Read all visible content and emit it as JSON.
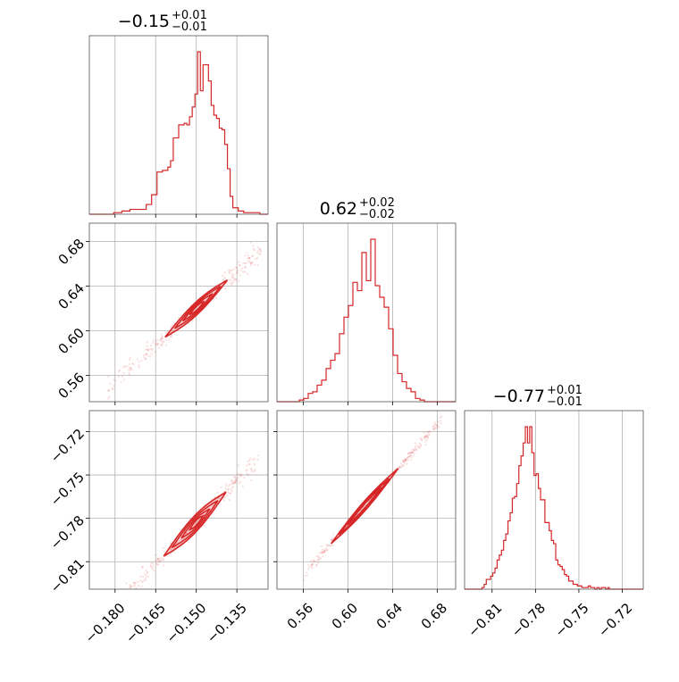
{
  "chart_data": {
    "type": "corner",
    "color": "#d62728",
    "grid": true,
    "parameters": [
      {
        "title": "−0.15",
        "title_plus": "+0.01",
        "title_minus": "−0.01",
        "range": [
          -0.1895,
          -0.1235
        ],
        "ticks": [
          {
            "v": -0.18,
            "label": "−0.180"
          },
          {
            "v": -0.165,
            "label": "−0.165"
          },
          {
            "v": -0.15,
            "label": "−0.150"
          },
          {
            "v": -0.135,
            "label": "−0.135"
          }
        ],
        "hist": {
          "edges": [
            -0.1895,
            -0.1865,
            -0.1835,
            -0.1805,
            -0.1775,
            -0.1745,
            -0.1715,
            -0.1685,
            -0.1665,
            -0.1645,
            -0.1625,
            -0.1605,
            -0.1595,
            -0.1585,
            -0.1575,
            -0.1565,
            -0.1555,
            -0.1545,
            -0.1535,
            -0.1525,
            -0.1515,
            -0.1505,
            -0.1495,
            -0.1485,
            -0.1475,
            -0.1465,
            -0.1455,
            -0.1445,
            -0.1435,
            -0.1425,
            -0.1415,
            -0.1405,
            -0.1395,
            -0.1385,
            -0.1375,
            -0.1365,
            -0.1345,
            -0.1325,
            -0.1295,
            -0.1265,
            -0.1235
          ],
          "counts": [
            0,
            0,
            0,
            1,
            2,
            3,
            3,
            6,
            12,
            26,
            27,
            29,
            33,
            47,
            47,
            55,
            55,
            56,
            55,
            60,
            66,
            74,
            100,
            76,
            92,
            92,
            82,
            67,
            61,
            59,
            53,
            52,
            43,
            28,
            11,
            4,
            2,
            1,
            1,
            0
          ]
        }
      },
      {
        "title": "0.62",
        "title_plus": "+0.02",
        "title_minus": "−0.02",
        "range": [
          0.5365,
          0.6965
        ],
        "ticks": [
          {
            "v": 0.56,
            "label": "0.56"
          },
          {
            "v": 0.6,
            "label": "0.60"
          },
          {
            "v": 0.64,
            "label": "0.64"
          },
          {
            "v": 0.68,
            "label": "0.68"
          }
        ],
        "hist": {
          "edges": [
            0.5365,
            0.5565,
            0.5605,
            0.5645,
            0.5685,
            0.5725,
            0.5765,
            0.5805,
            0.5845,
            0.5885,
            0.5925,
            0.5965,
            0.6005,
            0.6045,
            0.6085,
            0.6125,
            0.6165,
            0.6205,
            0.6245,
            0.6285,
            0.6325,
            0.6365,
            0.6405,
            0.6445,
            0.6485,
            0.6525,
            0.6565,
            0.6605,
            0.6645,
            0.6685,
            0.6725,
            0.6965
          ],
          "counts": [
            0,
            1,
            2,
            5,
            6,
            10,
            13,
            20,
            25,
            29,
            41,
            51,
            58,
            72,
            67,
            90,
            73,
            98,
            70,
            63,
            57,
            44,
            28,
            17,
            12,
            8,
            6,
            2,
            1,
            0,
            0
          ]
        }
      },
      {
        "title": "−0.77",
        "title_plus": "+0.01",
        "title_minus": "−0.01",
        "range": [
          -0.829,
          -0.7055
        ],
        "ticks": [
          {
            "v": -0.81,
            "label": "−0.81"
          },
          {
            "v": -0.78,
            "label": "−0.78"
          },
          {
            "v": -0.75,
            "label": "−0.75"
          },
          {
            "v": -0.72,
            "label": "−0.72"
          }
        ],
        "hist": {
          "edges": [
            -0.829,
            -0.817,
            -0.8155,
            -0.814,
            -0.8125,
            -0.811,
            -0.8095,
            -0.808,
            -0.8065,
            -0.805,
            -0.8035,
            -0.802,
            -0.8005,
            -0.799,
            -0.7975,
            -0.796,
            -0.7945,
            -0.793,
            -0.7915,
            -0.79,
            -0.7885,
            -0.787,
            -0.7855,
            -0.784,
            -0.7825,
            -0.781,
            -0.7795,
            -0.778,
            -0.7765,
            -0.775,
            -0.7735,
            -0.772,
            -0.7705,
            -0.769,
            -0.7675,
            -0.766,
            -0.7645,
            -0.763,
            -0.7615,
            -0.76,
            -0.7585,
            -0.757,
            -0.7555,
            -0.754,
            -0.7525,
            -0.751,
            -0.7495,
            -0.748,
            -0.7465,
            -0.745,
            -0.7435,
            -0.742,
            -0.7405,
            -0.739,
            -0.7375,
            -0.736,
            -0.7345,
            -0.733,
            -0.7315,
            -0.73,
            -0.729,
            -0.7055
          ],
          "counts": [
            0,
            1,
            3,
            6,
            6,
            8,
            10,
            13,
            18,
            21,
            24,
            30,
            34,
            42,
            47,
            56,
            57,
            65,
            76,
            82,
            90,
            100,
            90,
            100,
            84,
            70,
            71,
            62,
            55,
            55,
            41,
            41,
            36,
            30,
            28,
            18,
            15,
            14,
            12,
            9,
            8,
            5,
            5,
            3,
            3,
            2,
            2,
            1,
            1,
            1,
            2,
            1,
            1,
            0,
            1,
            0,
            1,
            1,
            0,
            1,
            0
          ]
        }
      }
    ],
    "pairs": [
      {
        "row": 1,
        "col": 0,
        "slope": 2.222,
        "intercept": 0.9533,
        "spread": 0.0045,
        "contours": [
          {
            "x0": -0.1615,
            "x1": -0.1385,
            "w": 0.006
          },
          {
            "x0": -0.158,
            "x1": -0.141,
            "w": 0.0045
          },
          {
            "x0": -0.155,
            "x1": -0.144,
            "w": 0.003
          },
          {
            "x0": -0.1525,
            "x1": -0.147,
            "w": 0.0018
          }
        ],
        "scatter_range": [
          -0.183,
          -0.126
        ]
      },
      {
        "row": 2,
        "col": 0,
        "slope": 1.923,
        "intercept": -0.4946,
        "spread": 0.0035,
        "contours": [
          {
            "x0": -0.162,
            "x1": -0.139,
            "w": 0.006
          },
          {
            "x0": -0.159,
            "x1": -0.142,
            "w": 0.0045
          },
          {
            "x0": -0.1555,
            "x1": -0.145,
            "w": 0.003
          },
          {
            "x0": -0.1525,
            "x1": -0.1475,
            "w": 0.0018
          }
        ],
        "scatter_range": [
          -0.182,
          -0.127
        ]
      },
      {
        "row": 2,
        "col": 1,
        "slope": 0.8667,
        "intercept": -1.3045,
        "spread": 0.0012,
        "contours": [
          {
            "x0": 0.585,
            "x1": 0.645,
            "w": 0.0035
          },
          {
            "x0": 0.592,
            "x1": 0.637,
            "w": 0.0025
          },
          {
            "x0": 0.6,
            "x1": 0.63,
            "w": 0.0015
          }
        ],
        "scatter_range": [
          0.56,
          0.684
        ]
      }
    ]
  }
}
